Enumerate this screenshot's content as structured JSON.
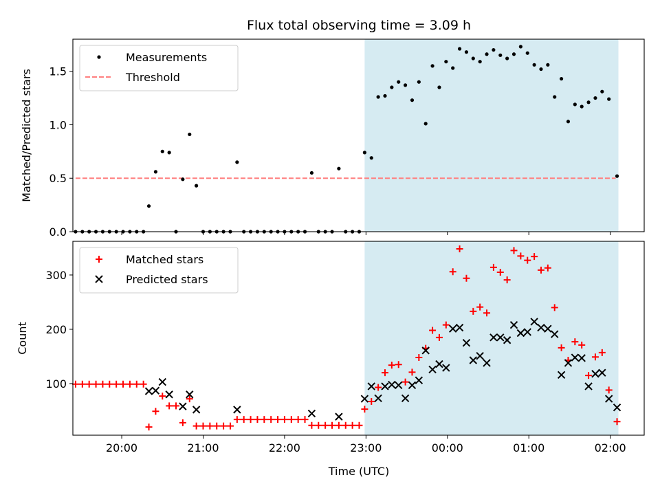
{
  "title": "Flux total observing time = 3.09 h",
  "xlabel": "Time (UTC)",
  "xticks": [
    "20:00",
    "21:00",
    "22:00",
    "23:00",
    "00:00",
    "01:00",
    "02:00"
  ],
  "chart_data": [
    {
      "type": "scatter",
      "ylabel": "Matched/Predicted stars",
      "xlim": [
        "19:24",
        "02:25"
      ],
      "ylim": [
        0,
        1.8
      ],
      "yticks": [
        "0.0",
        "0.5",
        "1.0",
        "1.5"
      ],
      "shaded_span": [
        "22:59",
        "02:06"
      ],
      "shaded_color": "#add8e6",
      "legend": {
        "location": "upper left",
        "entries": [
          "Measurements",
          "Threshold"
        ]
      },
      "threshold": {
        "name": "Threshold",
        "value": 0.5,
        "x_range": [
          "19:26",
          "02:04"
        ],
        "color": "#ff7f7f"
      },
      "series": [
        {
          "name": "Measurements",
          "color": "#000000",
          "points": [
            [
              "19:26",
              0
            ],
            [
              "19:31",
              0
            ],
            [
              "19:36",
              0
            ],
            [
              "19:41",
              0
            ],
            [
              "19:46",
              0
            ],
            [
              "19:51",
              0
            ],
            [
              "19:56",
              0
            ],
            [
              "20:01",
              0
            ],
            [
              "20:06",
              0
            ],
            [
              "20:11",
              0
            ],
            [
              "20:16",
              0
            ],
            [
              "20:20",
              0.24
            ],
            [
              "20:25",
              0.56
            ],
            [
              "20:30",
              0.75
            ],
            [
              "20:35",
              0.74
            ],
            [
              "20:40",
              0
            ],
            [
              "20:45",
              0.49
            ],
            [
              "20:50",
              0.91
            ],
            [
              "20:55",
              0.43
            ],
            [
              "21:00",
              0
            ],
            [
              "21:05",
              0
            ],
            [
              "21:10",
              0
            ],
            [
              "21:15",
              0
            ],
            [
              "21:20",
              0
            ],
            [
              "21:25",
              0.65
            ],
            [
              "21:30",
              0
            ],
            [
              "21:35",
              0
            ],
            [
              "21:40",
              0
            ],
            [
              "21:45",
              0
            ],
            [
              "21:50",
              0
            ],
            [
              "21:55",
              0
            ],
            [
              "22:00",
              0
            ],
            [
              "22:05",
              0
            ],
            [
              "22:10",
              0
            ],
            [
              "22:15",
              0
            ],
            [
              "22:20",
              0.55
            ],
            [
              "22:25",
              0
            ],
            [
              "22:30",
              0
            ],
            [
              "22:35",
              0
            ],
            [
              "22:40",
              0.59
            ],
            [
              "22:45",
              0
            ],
            [
              "22:50",
              0
            ],
            [
              "22:55",
              0
            ],
            [
              "22:59",
              0.74
            ],
            [
              "23:04",
              0.69
            ],
            [
              "23:09",
              1.26
            ],
            [
              "23:14",
              1.27
            ],
            [
              "23:19",
              1.35
            ],
            [
              "23:24",
              1.4
            ],
            [
              "23:29",
              1.37
            ],
            [
              "23:34",
              1.23
            ],
            [
              "23:39",
              1.4
            ],
            [
              "23:44",
              1.01
            ],
            [
              "23:49",
              1.55
            ],
            [
              "23:54",
              1.35
            ],
            [
              "23:59",
              1.59
            ],
            [
              "00:04",
              1.53
            ],
            [
              "00:09",
              1.71
            ],
            [
              "00:14",
              1.68
            ],
            [
              "00:19",
              1.62
            ],
            [
              "00:24",
              1.59
            ],
            [
              "00:29",
              1.66
            ],
            [
              "00:34",
              1.7
            ],
            [
              "00:39",
              1.65
            ],
            [
              "00:44",
              1.62
            ],
            [
              "00:49",
              1.66
            ],
            [
              "00:54",
              1.73
            ],
            [
              "00:59",
              1.67
            ],
            [
              "01:04",
              1.56
            ],
            [
              "01:09",
              1.52
            ],
            [
              "01:14",
              1.56
            ],
            [
              "01:19",
              1.26
            ],
            [
              "01:24",
              1.43
            ],
            [
              "01:29",
              1.03
            ],
            [
              "01:34",
              1.19
            ],
            [
              "01:39",
              1.17
            ],
            [
              "01:44",
              1.21
            ],
            [
              "01:49",
              1.25
            ],
            [
              "01:54",
              1.31
            ],
            [
              "01:59",
              1.24
            ],
            [
              "02:05",
              0.52
            ]
          ]
        }
      ]
    },
    {
      "type": "scatter",
      "ylabel": "Count",
      "xlim": [
        "19:24",
        "02:25"
      ],
      "ylim": [
        5,
        362
      ],
      "yticks": [
        "100",
        "200",
        "300"
      ],
      "shaded_span": [
        "22:59",
        "02:06"
      ],
      "shaded_color": "#add8e6",
      "legend": {
        "location": "upper left",
        "entries": [
          "Matched stars",
          "Predicted stars"
        ]
      },
      "series": [
        {
          "name": "Matched stars",
          "marker": "plus",
          "color": "#ff0000",
          "points": [
            [
              "19:26",
              99
            ],
            [
              "19:31",
              99
            ],
            [
              "19:36",
              99
            ],
            [
              "19:41",
              99
            ],
            [
              "19:46",
              99
            ],
            [
              "19:51",
              99
            ],
            [
              "19:56",
              99
            ],
            [
              "20:01",
              99
            ],
            [
              "20:06",
              99
            ],
            [
              "20:11",
              99
            ],
            [
              "20:16",
              99
            ],
            [
              "20:20",
              20
            ],
            [
              "20:25",
              49
            ],
            [
              "20:30",
              77
            ],
            [
              "20:35",
              59
            ],
            [
              "20:40",
              59
            ],
            [
              "20:45",
              28
            ],
            [
              "20:50",
              72
            ],
            [
              "20:55",
              22
            ],
            [
              "21:00",
              22
            ],
            [
              "21:05",
              22
            ],
            [
              "21:10",
              22
            ],
            [
              "21:15",
              22
            ],
            [
              "21:20",
              22
            ],
            [
              "21:25",
              34
            ],
            [
              "21:30",
              34
            ],
            [
              "21:35",
              34
            ],
            [
              "21:40",
              34
            ],
            [
              "21:45",
              34
            ],
            [
              "21:50",
              34
            ],
            [
              "21:55",
              34
            ],
            [
              "22:00",
              34
            ],
            [
              "22:05",
              34
            ],
            [
              "22:10",
              34
            ],
            [
              "22:15",
              34
            ],
            [
              "22:20",
              23
            ],
            [
              "22:25",
              23
            ],
            [
              "22:30",
              23
            ],
            [
              "22:35",
              23
            ],
            [
              "22:40",
              23
            ],
            [
              "22:45",
              23
            ],
            [
              "22:50",
              23
            ],
            [
              "22:55",
              23
            ],
            [
              "22:59",
              53
            ],
            [
              "23:04",
              67
            ],
            [
              "23:09",
              93
            ],
            [
              "23:14",
              120
            ],
            [
              "23:19",
              134
            ],
            [
              "23:24",
              135
            ],
            [
              "23:29",
              103
            ],
            [
              "23:34",
              121
            ],
            [
              "23:39",
              148
            ],
            [
              "23:44",
              165
            ],
            [
              "23:49",
              198
            ],
            [
              "23:54",
              185
            ],
            [
              "23:59",
              208
            ],
            [
              "00:04",
              306
            ],
            [
              "00:09",
              348
            ],
            [
              "00:14",
              294
            ],
            [
              "00:19",
              233
            ],
            [
              "00:24",
              241
            ],
            [
              "00:29",
              230
            ],
            [
              "00:34",
              314
            ],
            [
              "00:39",
              305
            ],
            [
              "00:44",
              291
            ],
            [
              "00:49",
              345
            ],
            [
              "00:54",
              335
            ],
            [
              "00:59",
              327
            ],
            [
              "01:04",
              334
            ],
            [
              "01:09",
              309
            ],
            [
              "01:14",
              313
            ],
            [
              "01:19",
              240
            ],
            [
              "01:24",
              166
            ],
            [
              "01:29",
              143
            ],
            [
              "01:34",
              177
            ],
            [
              "01:39",
              171
            ],
            [
              "01:44",
              115
            ],
            [
              "01:49",
              149
            ],
            [
              "01:54",
              157
            ],
            [
              "01:59",
              88
            ],
            [
              "02:05",
              30
            ]
          ]
        },
        {
          "name": "Predicted stars",
          "marker": "x",
          "color": "#000000",
          "points": [
            [
              "20:20",
              86
            ],
            [
              "20:25",
              87
            ],
            [
              "20:30",
              103
            ],
            [
              "20:35",
              80
            ],
            [
              "20:45",
              58
            ],
            [
              "20:50",
              80
            ],
            [
              "20:55",
              52
            ],
            [
              "21:25",
              52
            ],
            [
              "22:20",
              45
            ],
            [
              "22:40",
              39
            ],
            [
              "22:59",
              72
            ],
            [
              "23:04",
              95
            ],
            [
              "23:09",
              73
            ],
            [
              "23:14",
              95
            ],
            [
              "23:19",
              98
            ],
            [
              "23:24",
              97
            ],
            [
              "23:29",
              73
            ],
            [
              "23:34",
              97
            ],
            [
              "23:39",
              106
            ],
            [
              "23:44",
              161
            ],
            [
              "23:49",
              126
            ],
            [
              "23:54",
              136
            ],
            [
              "23:59",
              129
            ],
            [
              "00:04",
              201
            ],
            [
              "00:09",
              203
            ],
            [
              "00:14",
              175
            ],
            [
              "00:19",
              143
            ],
            [
              "00:24",
              151
            ],
            [
              "00:29",
              138
            ],
            [
              "00:34",
              185
            ],
            [
              "00:39",
              185
            ],
            [
              "00:44",
              180
            ],
            [
              "00:49",
              208
            ],
            [
              "00:54",
              193
            ],
            [
              "00:59",
              195
            ],
            [
              "01:04",
              214
            ],
            [
              "01:09",
              203
            ],
            [
              "01:14",
              201
            ],
            [
              "01:19",
              191
            ],
            [
              "01:24",
              116
            ],
            [
              "01:29",
              138
            ],
            [
              "01:34",
              148
            ],
            [
              "01:39",
              147
            ],
            [
              "01:44",
              95
            ],
            [
              "01:49",
              118
            ],
            [
              "01:54",
              120
            ],
            [
              "01:59",
              72
            ],
            [
              "02:05",
              56
            ]
          ]
        }
      ]
    }
  ]
}
